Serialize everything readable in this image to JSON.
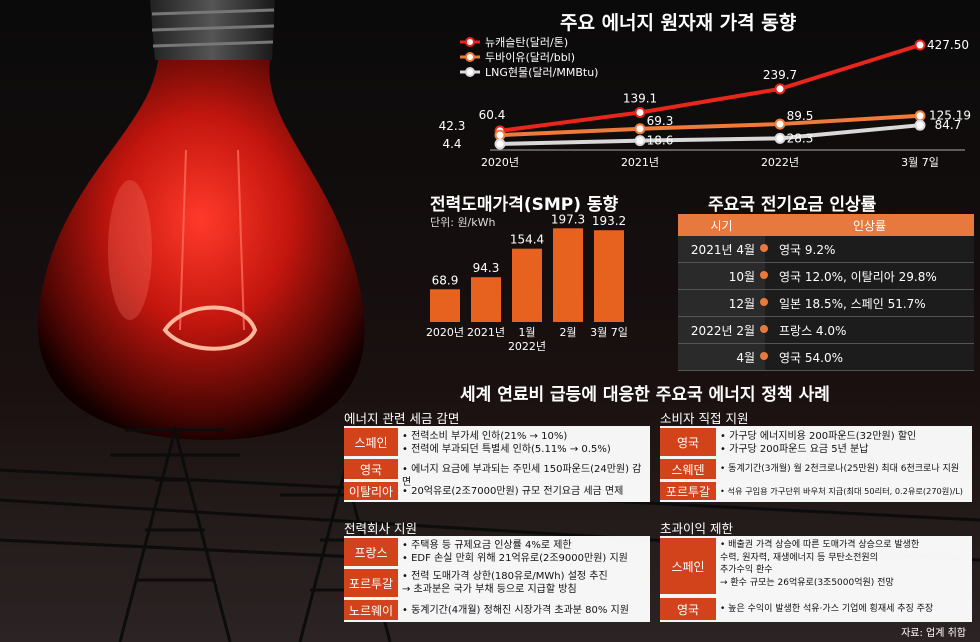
{
  "chart_data": [
    {
      "type": "line",
      "title": "주요 에너지 원자재 가격 동향",
      "categories": [
        "2020년",
        "2021년",
        "2022년",
        "3월 7일"
      ],
      "series": [
        {
          "name": "뉴캐슬탄(달러/톤)",
          "values": [
            60.4,
            139.1,
            239.7,
            427.5
          ],
          "labels": [
            "60.4",
            "139.1",
            "239.7",
            "427.50"
          ],
          "color": "#e8261c"
        },
        {
          "name": "두바이유(달러/bbl)",
          "values": [
            42.3,
            69.3,
            89.5,
            125.19
          ],
          "labels": [
            "42.3",
            "69.3",
            "89.5",
            "125.19"
          ],
          "color": "#f07a3a"
        },
        {
          "name": "LNG현물(달러/MMBtu)",
          "values": [
            4.4,
            18.6,
            28.3,
            84.7
          ],
          "labels": [
            "4.4",
            "18.6",
            "28.3",
            "84.7"
          ],
          "color": "#d9d9d9"
        }
      ]
    },
    {
      "type": "bar",
      "title": "전력도매가격(SMP) 동향",
      "unit": "단위: 원/kWh",
      "categories": [
        "2020년",
        "2021년",
        "1월\n2022년",
        "2월",
        "3월 7일"
      ],
      "values": [
        68.9,
        94.3,
        154.4,
        197.3,
        193.2
      ],
      "labels": [
        "68.9",
        "94.3",
        "154.4",
        "197.3",
        "193.2"
      ],
      "color": "#e8621f"
    },
    {
      "type": "table",
      "title": "주요국 전기요금 인상률",
      "columns": [
        "시기",
        "인상률"
      ],
      "rows": [
        {
          "when": "2021년 4월",
          "what": "영국 9.2%"
        },
        {
          "when": "10월",
          "what": "영국 12.0%, 이탈리아 29.8%"
        },
        {
          "when": "12월",
          "what": "일본 18.5%, 스페인 51.7%"
        },
        {
          "when": "2022년 2월",
          "what": "프랑스 4.0%"
        },
        {
          "when": "4월",
          "what": "영국 54.0%"
        }
      ]
    }
  ],
  "policy": {
    "title": "세계 연료비 급등에 대응한 주요국 에너지 정책 사례",
    "tax": {
      "head": "에너지 관련 세금 감면",
      "rows": [
        {
          "country": "스페인",
          "text": "• 전력소비 부가세 인하(21% → 10%)\n• 전력에 부과되던 특별세 인하(5.11% → 0.5%)"
        },
        {
          "country": "영국",
          "text": "• 에너지 요금에 부과되는 주민세 150파운드(24만원) 감면"
        },
        {
          "country": "이탈리아",
          "text": "• 20억유로(2조7000만원) 규모 전기요금 세금 면제"
        }
      ]
    },
    "consumer": {
      "head": "소비자 직접 지원",
      "rows": [
        {
          "country": "영국",
          "text": "• 가구당 에너지비용 200파운드(32만원) 할인\n• 가구당 200파운드 요금 5년 분납"
        },
        {
          "country": "스웨덴",
          "text": "• 동계기간(3개월) 월 2천크로나(25만원) 최대 6천크로나 지원"
        },
        {
          "country": "포르투갈",
          "text": "• 석유 구입용 가구단위 바우처 지급(최대 50리터, 0.2유로(270원)/L)"
        }
      ]
    },
    "utility": {
      "head": "전력회사 지원",
      "rows": [
        {
          "country": "프랑스",
          "text": "• 주택용 등 규제요금 인상률 4%로 제한\n• EDF 손실 만회 위해 21억유로(2조9000만원) 지원"
        },
        {
          "country": "포르투갈",
          "text": "• 전력 도매가격 상한(180유로/MWh) 설정 추진\n  → 초과분은 국가 부채 등으로 지급할 방침"
        },
        {
          "country": "노르웨이",
          "text": "• 동계기간(4개월) 정해진 시장가격 초과분 80% 지원"
        }
      ]
    },
    "windfall": {
      "head": "초과이익 제한",
      "rows": [
        {
          "country": "스페인",
          "text": "• 배출권 가격 상승에 따른 도매가격 상승으로 발생한\n   수력, 원자력, 재생에너지 등 무탄소전원의\n   추가수익 환수\n   → 환수 규모는 26억유로(3조5000억원) 전망"
        },
        {
          "country": "영국",
          "text": "• 높은 수익이 발생한 석유·가스 기업에 횡재세 추징 주장"
        }
      ]
    }
  },
  "source": "자료: 업계 취합",
  "colors": {
    "accent": "#d2431b",
    "orange": "#e8793e"
  }
}
